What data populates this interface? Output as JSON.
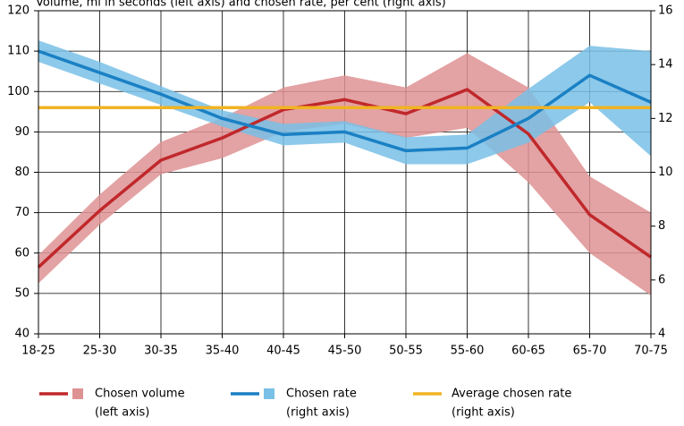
{
  "chart_data": {
    "type": "line",
    "title": "Volume, ml in seconds (left axis) and chosen rate, per cent (right axis)",
    "categories": [
      "18-25",
      "25-30",
      "30-35",
      "35-40",
      "40-45",
      "45-50",
      "50-55",
      "55-60",
      "60-65",
      "65-70",
      "70-75"
    ],
    "ylim": [
      40,
      120
    ],
    "yticks": [
      40,
      50,
      60,
      70,
      80,
      90,
      100,
      110,
      120
    ],
    "y2lim": [
      4,
      16
    ],
    "y2ticks": [
      4,
      6,
      8,
      10,
      12,
      14,
      16
    ],
    "grid": true,
    "legend": "bottom",
    "series": [
      {
        "name": "Chosen volume",
        "axis_note": "(left axis)",
        "color": "#c0282b",
        "band_color": "#de9293",
        "values": [
          56.5,
          70.5,
          83,
          88.5,
          95.5,
          98,
          94.5,
          100.5,
          89.5,
          69.5,
          59
        ],
        "lower": [
          52.5,
          67,
          79.5,
          83.5,
          90,
          92,
          88.5,
          91,
          77.5,
          60,
          49.5
        ],
        "upper": [
          59.5,
          74.5,
          87.5,
          93.5,
          101,
          104,
          101,
          109.5,
          101,
          79,
          70
        ]
      },
      {
        "name": "Chosen rate",
        "axis_note": "(right axis)",
        "axis": "y2",
        "color": "#1a80c4",
        "band_color": "#79c0e6",
        "values": [
          14.5,
          13.7,
          12.9,
          12.0,
          11.4,
          11.5,
          10.8,
          10.9,
          12.0,
          13.6,
          12.6
        ],
        "lower": [
          14.1,
          13.3,
          12.5,
          11.7,
          11.0,
          11.1,
          10.3,
          10.3,
          11.1,
          12.6,
          10.6
        ],
        "upper": [
          14.9,
          14.1,
          13.2,
          12.3,
          11.8,
          11.9,
          11.3,
          11.4,
          13.1,
          14.7,
          14.5
        ]
      },
      {
        "name": "Average chosen rate",
        "axis_note": "(right axis)",
        "axis": "y2",
        "color": "#f0b323",
        "values": [
          12.4,
          12.4,
          12.4,
          12.4,
          12.4,
          12.4,
          12.4,
          12.4,
          12.4,
          12.4,
          12.4
        ]
      }
    ]
  }
}
